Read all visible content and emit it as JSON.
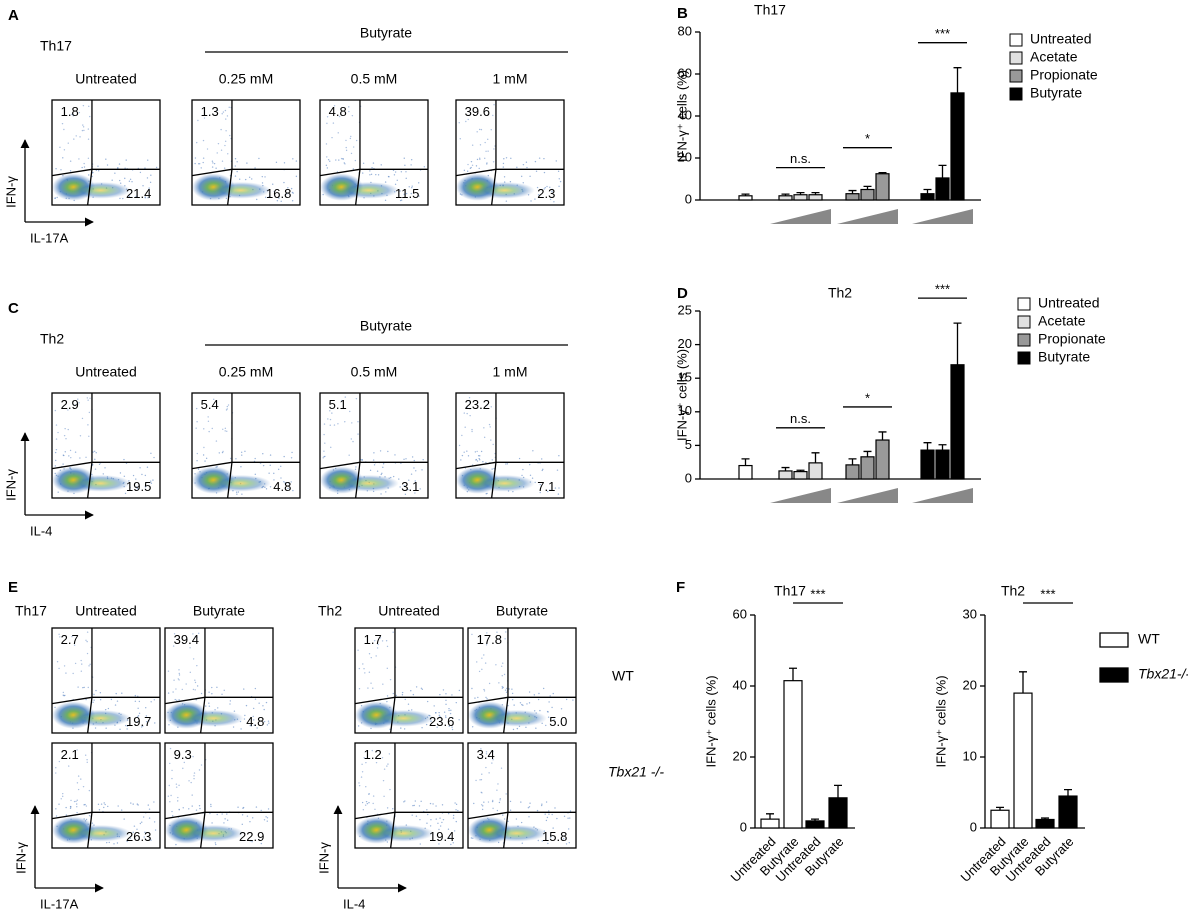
{
  "flow_panels": [
    {
      "panel": "A",
      "title": "Th17",
      "treatment": "Butyrate",
      "x_label": "IL-17A",
      "y_label": "IFN-γ",
      "columns": [
        "Untreated",
        "0.25 mM",
        "0.5 mM",
        "1 mM"
      ],
      "upper": [
        "1.8",
        "1.3",
        "4.8",
        "39.6"
      ],
      "lower": [
        "21.4",
        "16.8",
        "11.5",
        "2.3"
      ]
    },
    {
      "panel": "C",
      "title": "Th2",
      "treatment": "Butyrate",
      "x_label": "IL-4",
      "y_label": "IFN-γ",
      "columns": [
        "Untreated",
        "0.25 mM",
        "0.5 mM",
        "1 mM"
      ],
      "upper": [
        "2.9",
        "5.4",
        "5.1",
        "23.2"
      ],
      "lower": [
        "19.5",
        "4.8",
        "3.1",
        "7.1"
      ]
    },
    {
      "panel": "E",
      "row_labels": [
        "WT",
        "Tbx21 -/-"
      ],
      "groups": [
        {
          "title": "Th17",
          "x_label": "IL-17A",
          "y_label": "IFN-γ",
          "columns": [
            "Untreated",
            "Butyrate"
          ],
          "rows": [
            {
              "upper": [
                "2.7",
                "39.4"
              ],
              "lower": [
                "19.7",
                "4.8"
              ]
            },
            {
              "upper": [
                "2.1",
                "9.3"
              ],
              "lower": [
                "26.3",
                "22.9"
              ]
            }
          ]
        },
        {
          "title": "Th2",
          "x_label": "IL-4",
          "y_label": "IFN-γ",
          "columns": [
            "Untreated",
            "Butyrate"
          ],
          "rows": [
            {
              "upper": [
                "1.7",
                "17.8"
              ],
              "lower": [
                "23.6",
                "5.0"
              ]
            },
            {
              "upper": [
                "1.2",
                "3.4"
              ],
              "lower": [
                "19.4",
                "15.8"
              ]
            }
          ]
        }
      ]
    }
  ],
  "chart_data": [
    {
      "type": "bar",
      "panel": "B",
      "title": "Th17",
      "y_label": "IFN-γ⁺ cells (%)",
      "ylim": [
        0,
        80
      ],
      "yticks": [
        0,
        20,
        40,
        60,
        80
      ],
      "groups": [
        {
          "name": "Untreated",
          "color": "#ffffff",
          "values": [
            2
          ],
          "errors": [
            0.8
          ]
        },
        {
          "name": "Acetate",
          "color": "#e0e0e0",
          "values": [
            2,
            2.5,
            2.5
          ],
          "errors": [
            0.8,
            1,
            1
          ],
          "significance": "n.s."
        },
        {
          "name": "Propionate",
          "color": "#999999",
          "values": [
            3,
            5,
            12.5
          ],
          "errors": [
            1.5,
            1.5,
            0.5
          ],
          "significance": "*"
        },
        {
          "name": "Butyrate",
          "color": "#000000",
          "values": [
            3,
            10.5,
            51
          ],
          "errors": [
            2,
            6,
            12
          ],
          "significance": "***"
        }
      ]
    },
    {
      "type": "bar",
      "panel": "D",
      "title": "Th2",
      "y_label": "IFN-γ⁺ cells (%)",
      "ylim": [
        0,
        25
      ],
      "yticks": [
        0,
        5,
        10,
        15,
        20,
        25
      ],
      "groups": [
        {
          "name": "Untreated",
          "color": "#ffffff",
          "values": [
            2
          ],
          "errors": [
            1
          ]
        },
        {
          "name": "Acetate",
          "color": "#e0e0e0",
          "values": [
            1.2,
            1.1,
            2.4
          ],
          "errors": [
            0.5,
            0.2,
            1.5
          ],
          "significance": "n.s."
        },
        {
          "name": "Propionate",
          "color": "#999999",
          "values": [
            2.1,
            3.3,
            5.8
          ],
          "errors": [
            0.9,
            0.8,
            1.2
          ],
          "significance": "*"
        },
        {
          "name": "Butyrate",
          "color": "#000000",
          "values": [
            4.3,
            4.3,
            17
          ],
          "errors": [
            1.1,
            0.8,
            6.2
          ],
          "significance": "***"
        }
      ]
    },
    {
      "type": "bar",
      "panel": "F",
      "title": "Th17",
      "y_label": "IFN-γ⁺ cells (%)",
      "ylim": [
        0,
        60
      ],
      "yticks": [
        0,
        20,
        40,
        60
      ],
      "categories": [
        "Untreated",
        "Butyrate",
        "Untreated",
        "Butyrate"
      ],
      "significance": "***",
      "series": [
        {
          "color": "#ffffff",
          "values": [
            2.5,
            41.5,
            null,
            null
          ],
          "errors": [
            1.5,
            3.5,
            null,
            null
          ]
        },
        {
          "color": "#000000",
          "values": [
            null,
            null,
            2,
            8.5
          ],
          "errors": [
            null,
            null,
            0.5,
            3.5
          ]
        }
      ]
    },
    {
      "type": "bar",
      "title": "Th2",
      "y_label": "IFN-γ⁺ cells (%)",
      "ylim": [
        0,
        30
      ],
      "yticks": [
        0,
        10,
        20,
        30
      ],
      "categories": [
        "Untreated",
        "Butyrate",
        "Untreated",
        "Butyrate"
      ],
      "significance": "***",
      "series": [
        {
          "name": "WT",
          "color": "#ffffff",
          "values": [
            2.5,
            19,
            null,
            null
          ],
          "errors": [
            0.4,
            3,
            null,
            null
          ]
        },
        {
          "name": "Tbx21-/-",
          "color": "#000000",
          "values": [
            null,
            null,
            1.2,
            4.5
          ],
          "errors": [
            null,
            null,
            0.2,
            0.9
          ]
        }
      ]
    }
  ]
}
